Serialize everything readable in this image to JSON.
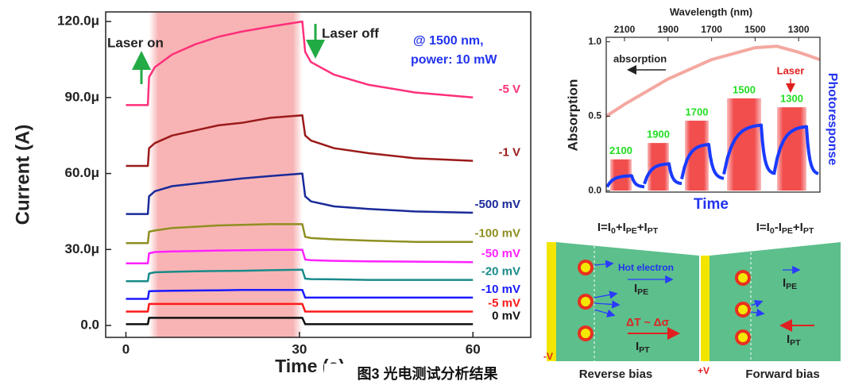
{
  "chart_data": [
    {
      "type": "line",
      "x_label": "Time (s)",
      "y_label": "Current (A)",
      "xlim": [
        -3.5,
        70
      ],
      "ylim": [
        -4.7e-06,
        0.0001238
      ],
      "xticks": [
        0,
        30,
        60
      ],
      "yticks": [
        {
          "value": 0,
          "label": "0.0"
        },
        {
          "value": 3e-05,
          "label": "30.0μ"
        },
        {
          "value": 6e-05,
          "label": "60.0μ"
        },
        {
          "value": 9e-05,
          "label": "90.0μ"
        },
        {
          "value": 0.00012,
          "label": "120.0μ"
        }
      ],
      "laser_span": [
        4,
        30.5
      ],
      "annotations": {
        "laser_on": "Laser on",
        "laser_off": "Laser off",
        "condition": [
          "@ 1500 nm,",
          "power: 10 mW"
        ]
      },
      "x": [
        0,
        3.8,
        4,
        5,
        8,
        12,
        16,
        20,
        25,
        30.5,
        31,
        32,
        36,
        42,
        50,
        60
      ],
      "series": [
        {
          "name": "-5 V",
          "color": "#ff2f7a",
          "values": [
            8.7e-05,
            8.7e-05,
            9.8e-05,
            0.000102,
            0.000107,
            0.000111,
            0.000114,
            0.000116,
            0.000118,
            0.00012,
            0.000108,
            0.000104,
            9.9e-05,
            9.5e-05,
            9.2e-05,
            9e-05
          ]
        },
        {
          "name": "-1 V",
          "color": "#9b1a1a",
          "values": [
            6.3e-05,
            6.3e-05,
            7e-05,
            7.2e-05,
            7.5e-05,
            7.7e-05,
            7.9e-05,
            8e-05,
            8.2e-05,
            8.3e-05,
            7.5e-05,
            7.3e-05,
            7e-05,
            6.8e-05,
            6.6e-05,
            6.5e-05
          ]
        },
        {
          "name": "-500 mV",
          "color": "#1a2a9a",
          "values": [
            4.4e-05,
            4.4e-05,
            5.1e-05,
            5.3e-05,
            5.5e-05,
            5.6e-05,
            5.7e-05,
            5.8e-05,
            5.9e-05,
            6e-05,
            5.1e-05,
            4.9e-05,
            4.7e-05,
            4.6e-05,
            4.5e-05,
            4.45e-05
          ]
        },
        {
          "name": "-100 mV",
          "color": "#8f8f22",
          "values": [
            3.25e-05,
            3.25e-05,
            3.7e-05,
            3.75e-05,
            3.85e-05,
            3.9e-05,
            3.95e-05,
            3.97e-05,
            4e-05,
            4e-05,
            3.5e-05,
            3.45e-05,
            3.4e-05,
            3.35e-05,
            3.3e-05,
            3.3e-05
          ]
        },
        {
          "name": "-50 mV",
          "color": "#ff22ff",
          "values": [
            2.45e-05,
            2.45e-05,
            2.85e-05,
            2.9e-05,
            2.92e-05,
            2.94e-05,
            2.96e-05,
            2.97e-05,
            2.98e-05,
            2.99e-05,
            2.6e-05,
            2.58e-05,
            2.55e-05,
            2.53e-05,
            2.52e-05,
            2.5e-05
          ]
        },
        {
          "name": "-20 mV",
          "color": "#1a8a8a",
          "values": [
            1.75e-05,
            1.75e-05,
            2.05e-05,
            2.1e-05,
            2.12e-05,
            2.14e-05,
            2.15e-05,
            2.16e-05,
            2.18e-05,
            2.2e-05,
            1.85e-05,
            1.83e-05,
            1.82e-05,
            1.8e-05,
            1.8e-05,
            1.8e-05
          ]
        },
        {
          "name": "-10 mV",
          "color": "#1a1aff",
          "values": [
            1.05e-05,
            1.05e-05,
            1.35e-05,
            1.36e-05,
            1.37e-05,
            1.38e-05,
            1.39e-05,
            1.4e-05,
            1.4e-05,
            1.4e-05,
            1.1e-05,
            1.1e-05,
            1.1e-05,
            1.1e-05,
            1.1e-05,
            1.1e-05
          ]
        },
        {
          "name": "-5 mV",
          "color": "#ff1a1a",
          "values": [
            5.5e-06,
            5.5e-06,
            8.5e-06,
            8.5e-06,
            8.5e-06,
            8.5e-06,
            8.5e-06,
            8.5e-06,
            8.5e-06,
            8.5e-06,
            5.5e-06,
            5.5e-06,
            5.5e-06,
            5.5e-06,
            5.5e-06,
            5.5e-06
          ]
        },
        {
          "name": "0 mV",
          "color": "#111111",
          "values": [
            5e-07,
            5e-07,
            3e-06,
            3e-06,
            3e-06,
            3e-06,
            3e-06,
            3e-06,
            3e-06,
            3e-06,
            5e-07,
            5e-07,
            5e-07,
            5e-07,
            5e-07,
            5e-07
          ]
        }
      ]
    },
    {
      "type": "combo",
      "x_label": "Time",
      "top_axis_label": "Wavelength (nm)",
      "y_label": "Absorption",
      "y2_label": "Photoresponse",
      "wavelength_lim": [
        2184,
        1202
      ],
      "wavelength_ticks": [
        2100,
        1900,
        1700,
        1500,
        1300
      ],
      "ylim": [
        -0.01,
        1.03
      ],
      "yticks": [
        {
          "value": 0,
          "label": "0.0"
        },
        {
          "value": 0.5,
          "label": "0.5"
        },
        {
          "value": 1,
          "label": "1.0"
        }
      ],
      "absorption": {
        "name": "absorption",
        "color": "#f4a8a0",
        "x": [
          2184,
          2100,
          1900,
          1700,
          1500,
          1400,
          1300,
          1202
        ],
        "values": [
          0.5,
          0.58,
          0.75,
          0.88,
          0.96,
          0.97,
          0.93,
          0.88
        ]
      },
      "pulses": {
        "color": "#f03a3a",
        "label_color": "#22dd22",
        "categories": [
          "2100",
          "1900",
          "1700",
          "1500",
          "1300"
        ],
        "values": [
          0.21,
          0.32,
          0.47,
          0.62,
          0.56
        ]
      },
      "photoresponse": {
        "color": "#1a3aff",
        "values": [
          0.1,
          0.18,
          0.31,
          0.44,
          0.43
        ]
      },
      "annotations": {
        "laser": "Laser"
      }
    }
  ],
  "diagram": {
    "reverse": {
      "formula": [
        "I=I",
        "0",
        "+I",
        "PE",
        "+I",
        "PT"
      ],
      "voltage": "-V",
      "bias": "Reverse bias",
      "hot_electron": "Hot electron",
      "i_pe": [
        "I",
        "PE"
      ],
      "delta": "ΔT ~ Δσ",
      "i_pt": [
        "I",
        "PT"
      ]
    },
    "forward": {
      "formula": [
        "I=I",
        "0",
        "-I",
        "PE",
        "+I",
        "PT"
      ],
      "voltage": "+V",
      "bias": "Forward bias",
      "i_pe": [
        "I",
        "PE"
      ],
      "i_pt": [
        "I",
        "PT"
      ]
    }
  },
  "caption": "图3 光电测试分析结果"
}
